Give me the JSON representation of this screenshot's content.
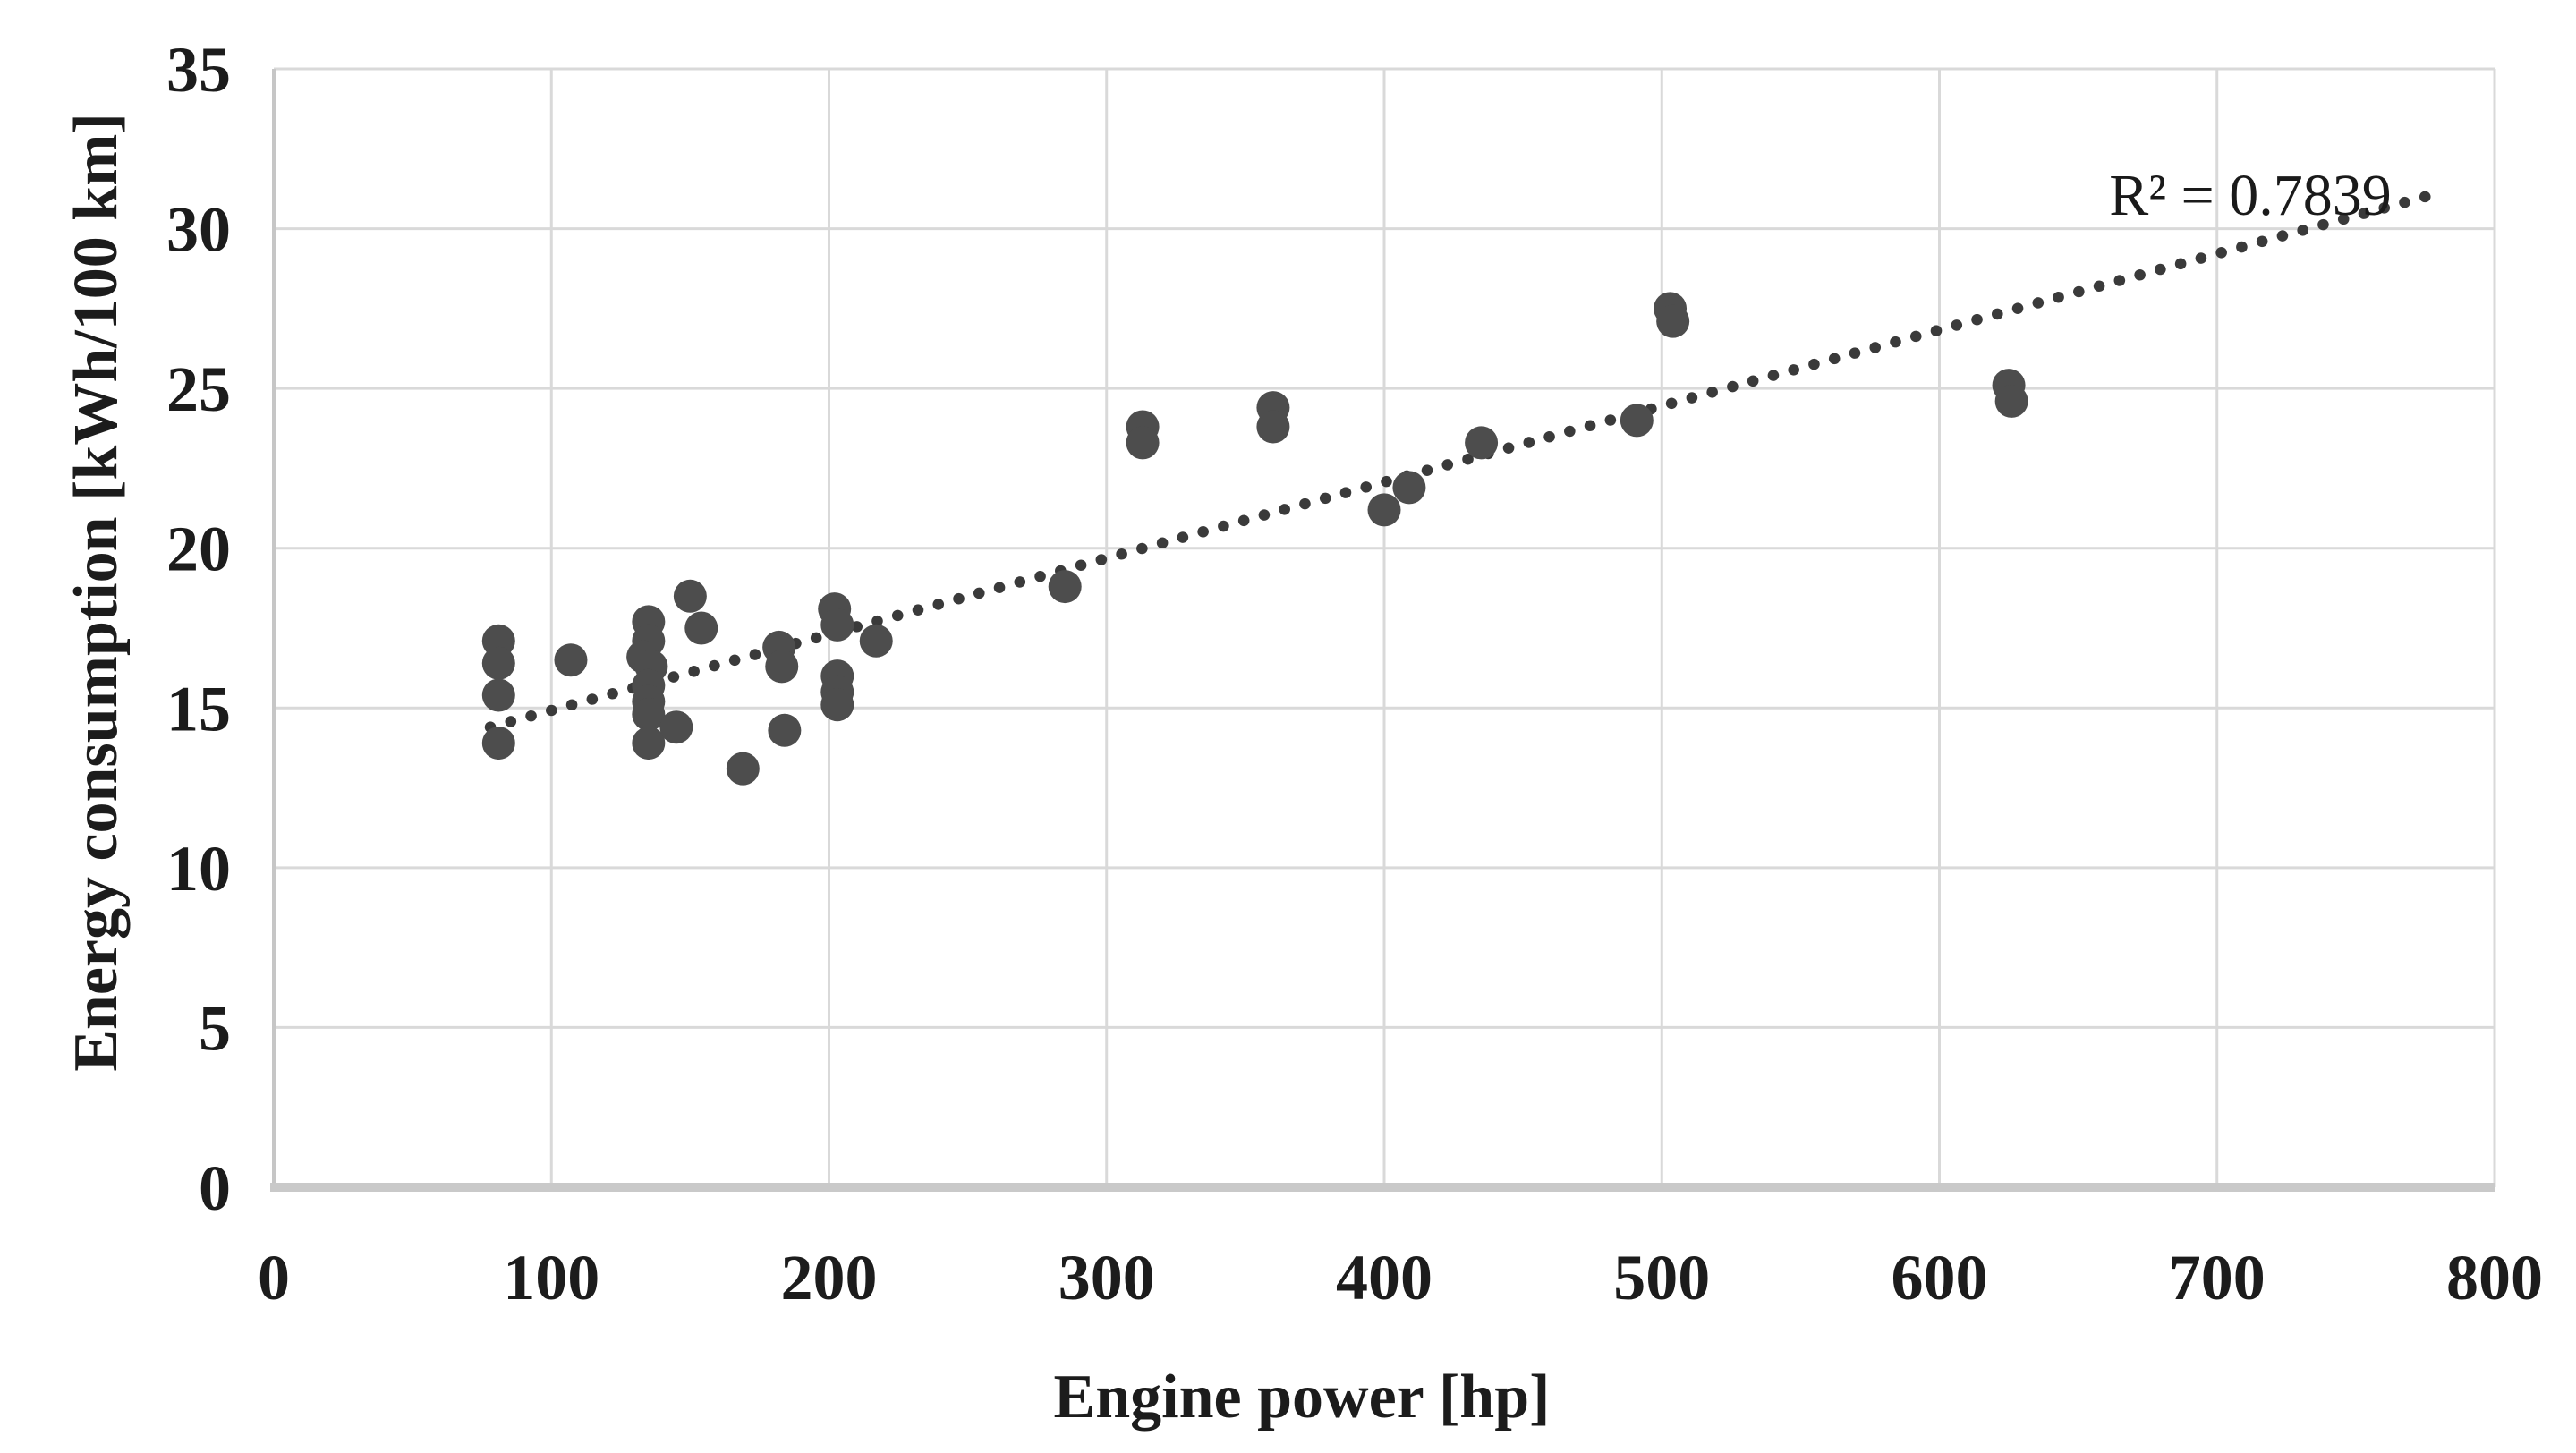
{
  "page": {
    "background_color": "#ffffff"
  },
  "chart_data": {
    "type": "scatter",
    "title": "",
    "xlabel": "Engine power [hp]",
    "ylabel": "Energy consumption [kWh/100 km]",
    "xlim": [
      0,
      800
    ],
    "ylim": [
      0,
      35
    ],
    "x_ticks": [
      0,
      100,
      200,
      300,
      400,
      500,
      600,
      700,
      800
    ],
    "y_ticks": [
      0,
      5,
      10,
      15,
      20,
      25,
      30,
      35
    ],
    "grid": true,
    "legend_position": "none",
    "r2_label": "R² = 0.7839",
    "r2_value": 0.7839,
    "marker_color": "#4d4d4d",
    "trendline_color": "#3a3a3a",
    "grid_color": "#d9d9d9",
    "axis_line_color": "#c6c6c6",
    "baseline_color": "#c9c9c9",
    "text_color": "#1c1c1c",
    "trendline": {
      "style": "dotted",
      "from": [
        78,
        14.4
      ],
      "to": [
        775,
        31.0
      ]
    },
    "points": [
      [
        81,
        17.1
      ],
      [
        81,
        16.4
      ],
      [
        81,
        15.4
      ],
      [
        81,
        13.9
      ],
      [
        107,
        16.5
      ],
      [
        135,
        17.7
      ],
      [
        135,
        17.1
      ],
      [
        133,
        16.6
      ],
      [
        136,
        16.3
      ],
      [
        135,
        15.7
      ],
      [
        135,
        15.2
      ],
      [
        135,
        14.8
      ],
      [
        135,
        13.9
      ],
      [
        145,
        14.4
      ],
      [
        150,
        18.5
      ],
      [
        154,
        17.5
      ],
      [
        169,
        13.1
      ],
      [
        182,
        16.9
      ],
      [
        183,
        16.3
      ],
      [
        184,
        14.3
      ],
      [
        202,
        18.1
      ],
      [
        203,
        17.6
      ],
      [
        203,
        16.0
      ],
      [
        203,
        15.5
      ],
      [
        203,
        15.1
      ],
      [
        217,
        17.1
      ],
      [
        285,
        18.8
      ],
      [
        313,
        23.8
      ],
      [
        313,
        23.3
      ],
      [
        360,
        24.4
      ],
      [
        360,
        23.8
      ],
      [
        400,
        21.2
      ],
      [
        409,
        21.9
      ],
      [
        435,
        23.3
      ],
      [
        491,
        24.0
      ],
      [
        503,
        27.5
      ],
      [
        504,
        27.1
      ],
      [
        625,
        25.1
      ],
      [
        626,
        24.6
      ]
    ]
  }
}
